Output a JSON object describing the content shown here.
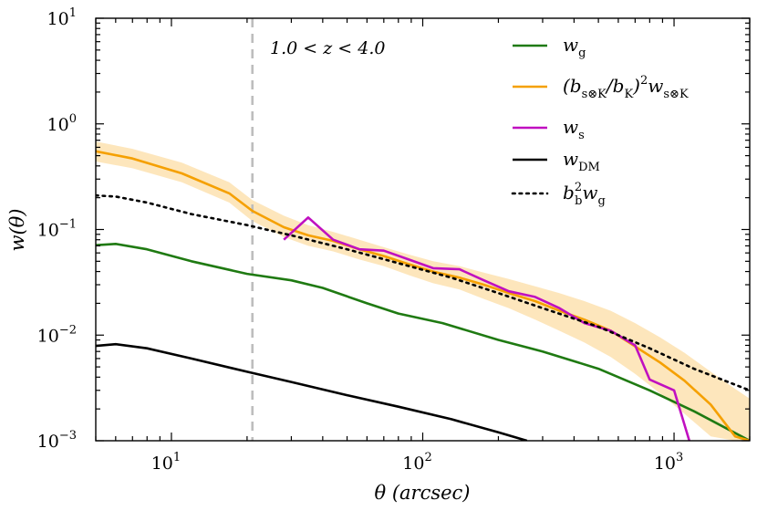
{
  "chart_data": {
    "type": "line",
    "xscale": "log",
    "yscale": "log",
    "xlim": [
      5,
      2000
    ],
    "ylim": [
      0.001,
      10
    ],
    "xlabel": "θ (arcsec)",
    "ylabel": "w(θ)",
    "x_ticks": [
      {
        "value": 10,
        "base": "10",
        "exp": "1"
      },
      {
        "value": 100,
        "base": "10",
        "exp": "2"
      },
      {
        "value": 1000,
        "base": "10",
        "exp": "3"
      }
    ],
    "y_ticks": [
      {
        "value": 10,
        "base": "10",
        "exp": "1"
      },
      {
        "value": 1,
        "base": "10",
        "exp": "0"
      },
      {
        "value": 0.1,
        "base": "10",
        "exp": "−1"
      },
      {
        "value": 0.01,
        "base": "10",
        "exp": "−2"
      },
      {
        "value": 0.001,
        "base": "10",
        "exp": "−3"
      }
    ],
    "annotation": "1.0 < z < 4.0",
    "vline": {
      "x": 21,
      "color": "#bdbdbd",
      "style": "dashed"
    },
    "band": {
      "color": "#fde2b0",
      "x": [
        5,
        7,
        11,
        17,
        21,
        28,
        35,
        44,
        56,
        70,
        88,
        110,
        140,
        175,
        220,
        280,
        350,
        440,
        560,
        700,
        880,
        1100,
        1400,
        1750,
        2000
      ],
      "lower": [
        0.44,
        0.38,
        0.28,
        0.18,
        0.12,
        0.085,
        0.07,
        0.062,
        0.052,
        0.045,
        0.037,
        0.031,
        0.027,
        0.022,
        0.018,
        0.014,
        0.011,
        0.0085,
        0.0062,
        0.0043,
        0.0028,
        0.0018,
        0.0011,
        0.001,
        0.001
      ],
      "upper": [
        0.68,
        0.58,
        0.43,
        0.28,
        0.19,
        0.135,
        0.11,
        0.095,
        0.08,
        0.068,
        0.058,
        0.05,
        0.045,
        0.039,
        0.034,
        0.029,
        0.025,
        0.021,
        0.017,
        0.013,
        0.0095,
        0.0068,
        0.0045,
        0.0031,
        0.0025
      ]
    },
    "series": [
      {
        "name": "w_g",
        "legend_main": "w",
        "legend_sub": "g",
        "color": "#1f7a12",
        "style": "solid",
        "x": [
          5,
          6,
          8,
          12,
          20,
          30,
          40,
          60,
          80,
          120,
          200,
          300,
          500,
          800,
          1200,
          2000
        ],
        "y": [
          0.071,
          0.073,
          0.065,
          0.05,
          0.038,
          0.033,
          0.028,
          0.02,
          0.016,
          0.013,
          0.009,
          0.007,
          0.0048,
          0.003,
          0.0019,
          0.001
        ]
      },
      {
        "name": "(b_s⊗K/b_K)^2 w_s⊗K",
        "legend_html": true,
        "color": "#f5a000",
        "style": "solid",
        "x": [
          5,
          7,
          11,
          17,
          21,
          28,
          35,
          44,
          56,
          70,
          88,
          110,
          140,
          175,
          220,
          280,
          350,
          440,
          560,
          700,
          880,
          1100,
          1400,
          1750,
          2000
        ],
        "y": [
          0.55,
          0.47,
          0.34,
          0.22,
          0.15,
          0.105,
          0.088,
          0.078,
          0.065,
          0.056,
          0.047,
          0.04,
          0.035,
          0.03,
          0.025,
          0.021,
          0.017,
          0.014,
          0.011,
          0.0078,
          0.0055,
          0.0037,
          0.0022,
          0.0011,
          0.001
        ]
      },
      {
        "name": "w_s",
        "legend_main": "w",
        "legend_sub": "s",
        "color": "#c010c0",
        "style": "solid",
        "x": [
          28,
          35,
          44,
          56,
          70,
          88,
          110,
          140,
          175,
          220,
          280,
          350,
          440,
          560,
          700,
          800,
          1000,
          1150
        ],
        "y": [
          0.08,
          0.13,
          0.08,
          0.065,
          0.063,
          0.052,
          0.043,
          0.042,
          0.033,
          0.026,
          0.023,
          0.018,
          0.013,
          0.011,
          0.008,
          0.0038,
          0.003,
          0.001
        ]
      },
      {
        "name": "w_DM",
        "legend_main": "w",
        "legend_sub": "DM",
        "color": "#000000",
        "style": "solid",
        "x": [
          5,
          6,
          8,
          12,
          20,
          30,
          50,
          80,
          130,
          200,
          260
        ],
        "y": [
          0.0079,
          0.0082,
          0.0075,
          0.006,
          0.0045,
          0.0036,
          0.0027,
          0.0021,
          0.0016,
          0.0012,
          0.001
        ]
      },
      {
        "name": "b_b^2 w_g",
        "legend_html": true,
        "color": "#000000",
        "style": "dotted",
        "x": [
          5,
          6,
          8,
          12,
          20,
          30,
          50,
          80,
          130,
          200,
          300,
          500,
          800,
          1200,
          2000
        ],
        "y": [
          0.21,
          0.205,
          0.18,
          0.14,
          0.11,
          0.088,
          0.065,
          0.048,
          0.035,
          0.025,
          0.018,
          0.012,
          0.0075,
          0.0048,
          0.003
        ]
      }
    ],
    "legend": [
      {
        "main": "w",
        "sub": "g"
      },
      {
        "lead": "(b",
        "sub1": "s⊗K",
        "mid": "/b",
        "sub2": "K",
        "tail": ")",
        "sup": "2",
        "main": "w",
        "sub3": "s⊗K"
      },
      {
        "main": "w",
        "sub": "s"
      },
      {
        "main": "w",
        "sub": "DM"
      },
      {
        "b": "b",
        "bsub": "b",
        "bsup": "2",
        "main": "w",
        "sub": "g"
      }
    ]
  }
}
